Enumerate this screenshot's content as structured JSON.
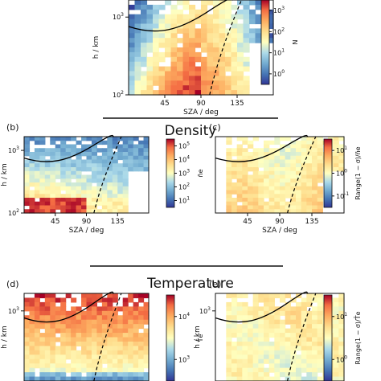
{
  "sections": {
    "density": "Density",
    "temperature": "Temperature"
  },
  "chart_data": [
    {
      "panel": "(a)",
      "type": "heatmap",
      "xlabel": "SZA / deg",
      "ylabel": "h / km",
      "x_ticks": [
        "45",
        "90",
        "135"
      ],
      "xlim": [
        0,
        180
      ],
      "y_scale": "log",
      "y_ticks": [
        {
          "base": "10",
          "exp": "2"
        },
        {
          "base": "10",
          "exp": "3"
        }
      ],
      "ylim": [
        100,
        2000
      ],
      "colorbar": {
        "label": "N",
        "scale": "log",
        "ticks": [
          {
            "base": "10",
            "exp": "0"
          },
          {
            "base": "10",
            "exp": "1"
          },
          {
            "base": "10",
            "exp": "2"
          },
          {
            "base": "10",
            "exp": "3"
          }
        ],
        "range": [
          1,
          10000
        ],
        "colormap": "RdYlBu_r"
      },
      "solid_curve": true,
      "dashed_curve": true
    },
    {
      "panel": "(b)",
      "type": "heatmap",
      "xlabel": "SZA / deg",
      "ylabel": "h / km",
      "x_ticks": [
        "45",
        "90",
        "135"
      ],
      "xlim": [
        0,
        180
      ],
      "y_scale": "log",
      "y_ticks": [
        {
          "base": "10",
          "exp": "2"
        },
        {
          "base": "10",
          "exp": "3"
        }
      ],
      "ylim": [
        100,
        2000
      ],
      "colorbar": {
        "label": "n̄e",
        "scale": "log",
        "ticks": [
          {
            "base": "10",
            "exp": "1"
          },
          {
            "base": "10",
            "exp": "2"
          },
          {
            "base": "10",
            "exp": "3"
          },
          {
            "base": "10",
            "exp": "4"
          },
          {
            "base": "10",
            "exp": "5"
          }
        ],
        "range": [
          10,
          100000
        ],
        "colormap": "RdYlBu_r"
      },
      "solid_curve": true,
      "dashed_curve": true
    },
    {
      "panel": "(c)",
      "type": "heatmap",
      "xlabel": "SZA / deg",
      "x_ticks": [
        "45",
        "90",
        "135"
      ],
      "xlim": [
        0,
        180
      ],
      "colorbar": {
        "label": "Range(1 − σ)/n̄e",
        "scale": "log",
        "ticks": [
          {
            "base": "10",
            "exp": "-1"
          },
          {
            "base": "10",
            "exp": "0"
          },
          {
            "base": "10",
            "exp": "1"
          }
        ],
        "range": [
          0.1,
          20
        ],
        "colormap": "RdYlBu_r"
      },
      "solid_curve": true,
      "dashed_curve": true
    },
    {
      "panel": "(d)",
      "type": "heatmap",
      "ylabel": "h / km",
      "y_scale": "log",
      "y_ticks": [
        {
          "base": "10",
          "exp": "3"
        }
      ],
      "colorbar": {
        "label": "T̄e",
        "scale": "log",
        "ticks": [
          {
            "base": "10",
            "exp": "3"
          },
          {
            "base": "10",
            "exp": "4"
          }
        ],
        "range": [
          300,
          10000
        ],
        "colormap": "RdYlBu_r"
      },
      "solid_curve": true,
      "dashed_curve": true
    },
    {
      "panel": "(e)",
      "type": "heatmap",
      "ylabel": "h / km",
      "y_scale": "log",
      "y_ticks": [
        {
          "base": "10",
          "exp": "3"
        }
      ],
      "colorbar": {
        "label": "Range(1 − σ)/T̄e",
        "scale": "log",
        "ticks": [
          {
            "base": "10",
            "exp": "0"
          },
          {
            "base": "10",
            "exp": "1"
          }
        ],
        "range": [
          0.3,
          15
        ],
        "colormap": "RdYlBu_r"
      },
      "solid_curve": true,
      "dashed_curve": true
    }
  ]
}
